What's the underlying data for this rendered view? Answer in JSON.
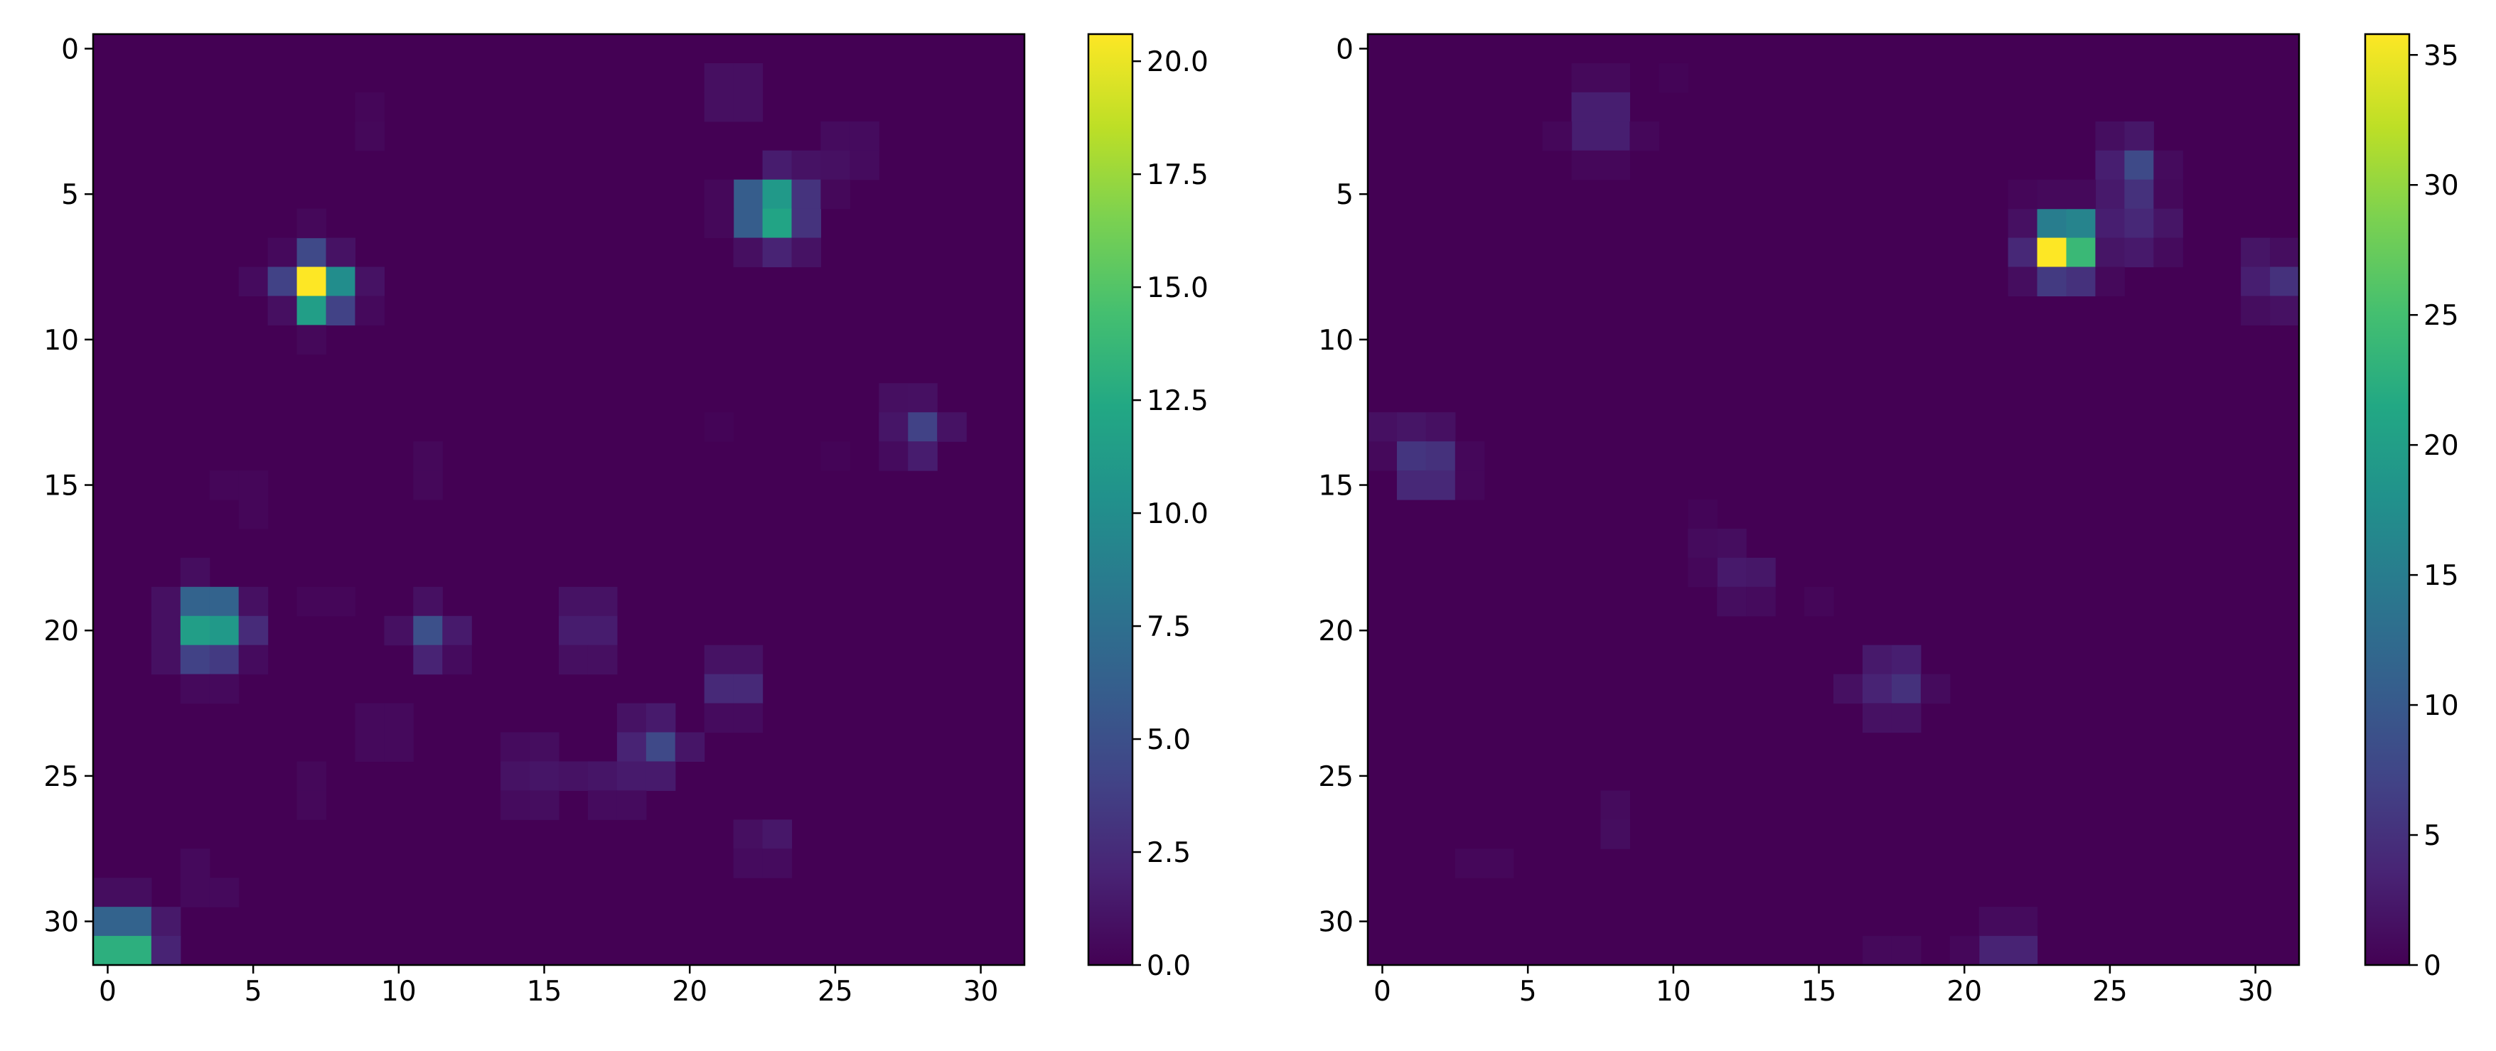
{
  "chart_data": [
    {
      "type": "heatmap",
      "title": "",
      "xlabel": "",
      "ylabel": "",
      "colormap": "viridis",
      "grid": false,
      "rows": 32,
      "cols": 32,
      "xlim": [
        -0.5,
        31.5
      ],
      "ylim": [
        31.5,
        -0.5
      ],
      "x_ticks": [
        0,
        5,
        10,
        15,
        20,
        25,
        30
      ],
      "y_ticks": [
        0,
        5,
        10,
        15,
        20,
        25,
        30
      ],
      "colorbar": {
        "min": 0,
        "max": 20.6,
        "ticks": [
          0,
          2.5,
          5,
          7.5,
          10,
          12.5,
          15,
          17.5,
          20
        ],
        "tick_labels": [
          "0.0",
          "2.5",
          "5.0",
          "7.5",
          "10.0",
          "12.5",
          "15.0",
          "17.5",
          "20.0"
        ]
      },
      "cells": [
        [
          1,
          21,
          0.8
        ],
        [
          1,
          22,
          0.8
        ],
        [
          2,
          21,
          0.8
        ],
        [
          2,
          22,
          0.8
        ],
        [
          2,
          9,
          0.3
        ],
        [
          3,
          9,
          0.4
        ],
        [
          3,
          25,
          0.6
        ],
        [
          3,
          26,
          0.6
        ],
        [
          4,
          23,
          1.6
        ],
        [
          4,
          24,
          1.0
        ],
        [
          4,
          25,
          0.9
        ],
        [
          4,
          26,
          0.6
        ],
        [
          5,
          22,
          6.0
        ],
        [
          5,
          23,
          11.0
        ],
        [
          5,
          24,
          3.0
        ],
        [
          6,
          22,
          6.0
        ],
        [
          6,
          23,
          12.0
        ],
        [
          6,
          24,
          3.0
        ],
        [
          5,
          21,
          0.4
        ],
        [
          6,
          21,
          0.4
        ],
        [
          5,
          25,
          0.4
        ],
        [
          7,
          22,
          0.8
        ],
        [
          7,
          23,
          2.0
        ],
        [
          7,
          24,
          1.0
        ],
        [
          7,
          6,
          0.5
        ],
        [
          7,
          7,
          4.5
        ],
        [
          7,
          8,
          1.0
        ],
        [
          6,
          7,
          0.4
        ],
        [
          8,
          5,
          0.6
        ],
        [
          8,
          6,
          4.0
        ],
        [
          8,
          7,
          20.6
        ],
        [
          8,
          8,
          10.0
        ],
        [
          8,
          9,
          1.0
        ],
        [
          9,
          6,
          0.8
        ],
        [
          9,
          7,
          11.5
        ],
        [
          9,
          8,
          4.0
        ],
        [
          9,
          9,
          0.5
        ],
        [
          10,
          7,
          0.4
        ],
        [
          12,
          27,
          0.8
        ],
        [
          12,
          28,
          0.9
        ],
        [
          13,
          27,
          1.2
        ],
        [
          13,
          28,
          4.0
        ],
        [
          13,
          29,
          1.0
        ],
        [
          14,
          27,
          0.6
        ],
        [
          14,
          28,
          1.6
        ],
        [
          13,
          21,
          0.2
        ],
        [
          14,
          25,
          0.2
        ],
        [
          14,
          11,
          0.4
        ],
        [
          15,
          11,
          0.4
        ],
        [
          15,
          4,
          0.3
        ],
        [
          15,
          5,
          0.3
        ],
        [
          16,
          5,
          0.3
        ],
        [
          18,
          3,
          0.7
        ],
        [
          19,
          2,
          0.9
        ],
        [
          19,
          3,
          6.5
        ],
        [
          19,
          4,
          6.5
        ],
        [
          19,
          5,
          0.9
        ],
        [
          20,
          2,
          0.9
        ],
        [
          20,
          3,
          11.5
        ],
        [
          20,
          4,
          11.0
        ],
        [
          20,
          5,
          2.5
        ],
        [
          21,
          2,
          0.9
        ],
        [
          21,
          3,
          4.0
        ],
        [
          21,
          4,
          3.5
        ],
        [
          21,
          5,
          0.6
        ],
        [
          22,
          3,
          0.5
        ],
        [
          22,
          4,
          0.5
        ],
        [
          19,
          7,
          0.3
        ],
        [
          19,
          8,
          0.3
        ],
        [
          19,
          11,
          0.9
        ],
        [
          20,
          10,
          0.9
        ],
        [
          20,
          11,
          5.0
        ],
        [
          20,
          12,
          1.5
        ],
        [
          21,
          11,
          2.0
        ],
        [
          21,
          12,
          0.6
        ],
        [
          19,
          16,
          1.0
        ],
        [
          19,
          17,
          1.0
        ],
        [
          20,
          16,
          1.6
        ],
        [
          20,
          17,
          1.6
        ],
        [
          21,
          16,
          0.8
        ],
        [
          21,
          17,
          0.8
        ],
        [
          21,
          21,
          1.0
        ],
        [
          21,
          22,
          1.0
        ],
        [
          22,
          21,
          2.4
        ],
        [
          22,
          22,
          2.4
        ],
        [
          23,
          21,
          0.6
        ],
        [
          23,
          22,
          0.6
        ],
        [
          23,
          9,
          0.5
        ],
        [
          23,
          10,
          0.5
        ],
        [
          24,
          9,
          0.5
        ],
        [
          24,
          10,
          0.5
        ],
        [
          23,
          18,
          1.0
        ],
        [
          23,
          19,
          1.5
        ],
        [
          24,
          18,
          2.0
        ],
        [
          24,
          19,
          4.5
        ],
        [
          24,
          20,
          1.2
        ],
        [
          24,
          14,
          0.6
        ],
        [
          24,
          15,
          0.7
        ],
        [
          25,
          14,
          1.0
        ],
        [
          25,
          15,
          1.2
        ],
        [
          25,
          16,
          1.0
        ],
        [
          25,
          17,
          1.2
        ],
        [
          25,
          18,
          1.5
        ],
        [
          25,
          19,
          1.5
        ],
        [
          26,
          14,
          0.6
        ],
        [
          26,
          15,
          0.7
        ],
        [
          26,
          17,
          0.6
        ],
        [
          26,
          18,
          0.6
        ],
        [
          25,
          7,
          0.4
        ],
        [
          26,
          7,
          0.4
        ],
        [
          27,
          22,
          0.8
        ],
        [
          27,
          23,
          1.3
        ],
        [
          28,
          22,
          0.6
        ],
        [
          28,
          23,
          0.6
        ],
        [
          28,
          3,
          0.5
        ],
        [
          29,
          3,
          0.5
        ],
        [
          29,
          4,
          0.5
        ],
        [
          29,
          0,
          0.7
        ],
        [
          29,
          1,
          0.7
        ],
        [
          30,
          0,
          6.5
        ],
        [
          30,
          1,
          6.5
        ],
        [
          30,
          2,
          1.4
        ],
        [
          31,
          0,
          13.0
        ],
        [
          31,
          1,
          13.0
        ],
        [
          31,
          2,
          2.0
        ]
      ]
    },
    {
      "type": "heatmap",
      "title": "",
      "xlabel": "",
      "ylabel": "",
      "colormap": "viridis",
      "grid": false,
      "rows": 32,
      "cols": 32,
      "xlim": [
        -0.5,
        31.5
      ],
      "ylim": [
        31.5,
        -0.5
      ],
      "x_ticks": [
        0,
        5,
        10,
        15,
        20,
        25,
        30
      ],
      "y_ticks": [
        0,
        5,
        10,
        15,
        20,
        25,
        30
      ],
      "colorbar": {
        "min": 0,
        "max": 35.8,
        "ticks": [
          0,
          5,
          10,
          15,
          20,
          25,
          30,
          35
        ],
        "tick_labels": [
          "0",
          "5",
          "10",
          "15",
          "20",
          "25",
          "30",
          "35"
        ]
      },
      "cells": [
        [
          1,
          7,
          0.8
        ],
        [
          1,
          8,
          0.8
        ],
        [
          1,
          10,
          0.3
        ],
        [
          2,
          7,
          3.0
        ],
        [
          2,
          8,
          3.0
        ],
        [
          3,
          7,
          3.0
        ],
        [
          3,
          8,
          3.0
        ],
        [
          3,
          6,
          0.6
        ],
        [
          3,
          9,
          0.6
        ],
        [
          4,
          7,
          0.6
        ],
        [
          4,
          8,
          0.6
        ],
        [
          3,
          25,
          1.3
        ],
        [
          3,
          26,
          2.2
        ],
        [
          4,
          25,
          3.0
        ],
        [
          4,
          26,
          8.0
        ],
        [
          4,
          27,
          1.0
        ],
        [
          5,
          25,
          2.5
        ],
        [
          5,
          26,
          5.0
        ],
        [
          5,
          27,
          0.8
        ],
        [
          6,
          22,
          1.5
        ],
        [
          6,
          23,
          15.0
        ],
        [
          6,
          24,
          16.0
        ],
        [
          6,
          25,
          3.0
        ],
        [
          6,
          26,
          4.0
        ],
        [
          6,
          27,
          2.0
        ],
        [
          7,
          22,
          4.0
        ],
        [
          7,
          23,
          35.8
        ],
        [
          7,
          24,
          24.0
        ],
        [
          7,
          25,
          2.0
        ],
        [
          7,
          26,
          2.5
        ],
        [
          7,
          27,
          1.0
        ],
        [
          8,
          22,
          1.2
        ],
        [
          8,
          23,
          6.0
        ],
        [
          8,
          24,
          5.0
        ],
        [
          8,
          25,
          0.8
        ],
        [
          5,
          22,
          0.5
        ],
        [
          5,
          23,
          0.8
        ],
        [
          5,
          24,
          0.8
        ],
        [
          7,
          30,
          2.0
        ],
        [
          7,
          31,
          1.2
        ],
        [
          8,
          30,
          3.0
        ],
        [
          8,
          31,
          5.0
        ],
        [
          9,
          30,
          1.2
        ],
        [
          9,
          31,
          1.6
        ],
        [
          13,
          0,
          1.5
        ],
        [
          13,
          1,
          2.0
        ],
        [
          13,
          2,
          1.5
        ],
        [
          14,
          0,
          0.8
        ],
        [
          14,
          1,
          5.5
        ],
        [
          14,
          2,
          5.0
        ],
        [
          14,
          3,
          0.6
        ],
        [
          15,
          1,
          4.0
        ],
        [
          15,
          2,
          4.0
        ],
        [
          15,
          3,
          0.6
        ],
        [
          16,
          11,
          0.4
        ],
        [
          17,
          11,
          1.0
        ],
        [
          17,
          12,
          1.2
        ],
        [
          18,
          12,
          2.5
        ],
        [
          18,
          13,
          2.2
        ],
        [
          19,
          12,
          1.2
        ],
        [
          19,
          13,
          1.0
        ],
        [
          18,
          11,
          0.6
        ],
        [
          19,
          15,
          0.5
        ],
        [
          21,
          17,
          2.5
        ],
        [
          21,
          18,
          3.0
        ],
        [
          22,
          16,
          1.5
        ],
        [
          22,
          17,
          3.5
        ],
        [
          22,
          18,
          5.0
        ],
        [
          22,
          19,
          1.0
        ],
        [
          23,
          17,
          1.6
        ],
        [
          23,
          18,
          1.6
        ],
        [
          26,
          8,
          1.0
        ],
        [
          27,
          8,
          1.2
        ],
        [
          28,
          3,
          0.6
        ],
        [
          28,
          4,
          0.6
        ],
        [
          30,
          21,
          1.0
        ],
        [
          30,
          22,
          1.0
        ],
        [
          31,
          21,
          3.5
        ],
        [
          31,
          22,
          3.5
        ],
        [
          31,
          20,
          0.6
        ],
        [
          31,
          17,
          0.8
        ],
        [
          31,
          18,
          0.8
        ]
      ]
    }
  ]
}
